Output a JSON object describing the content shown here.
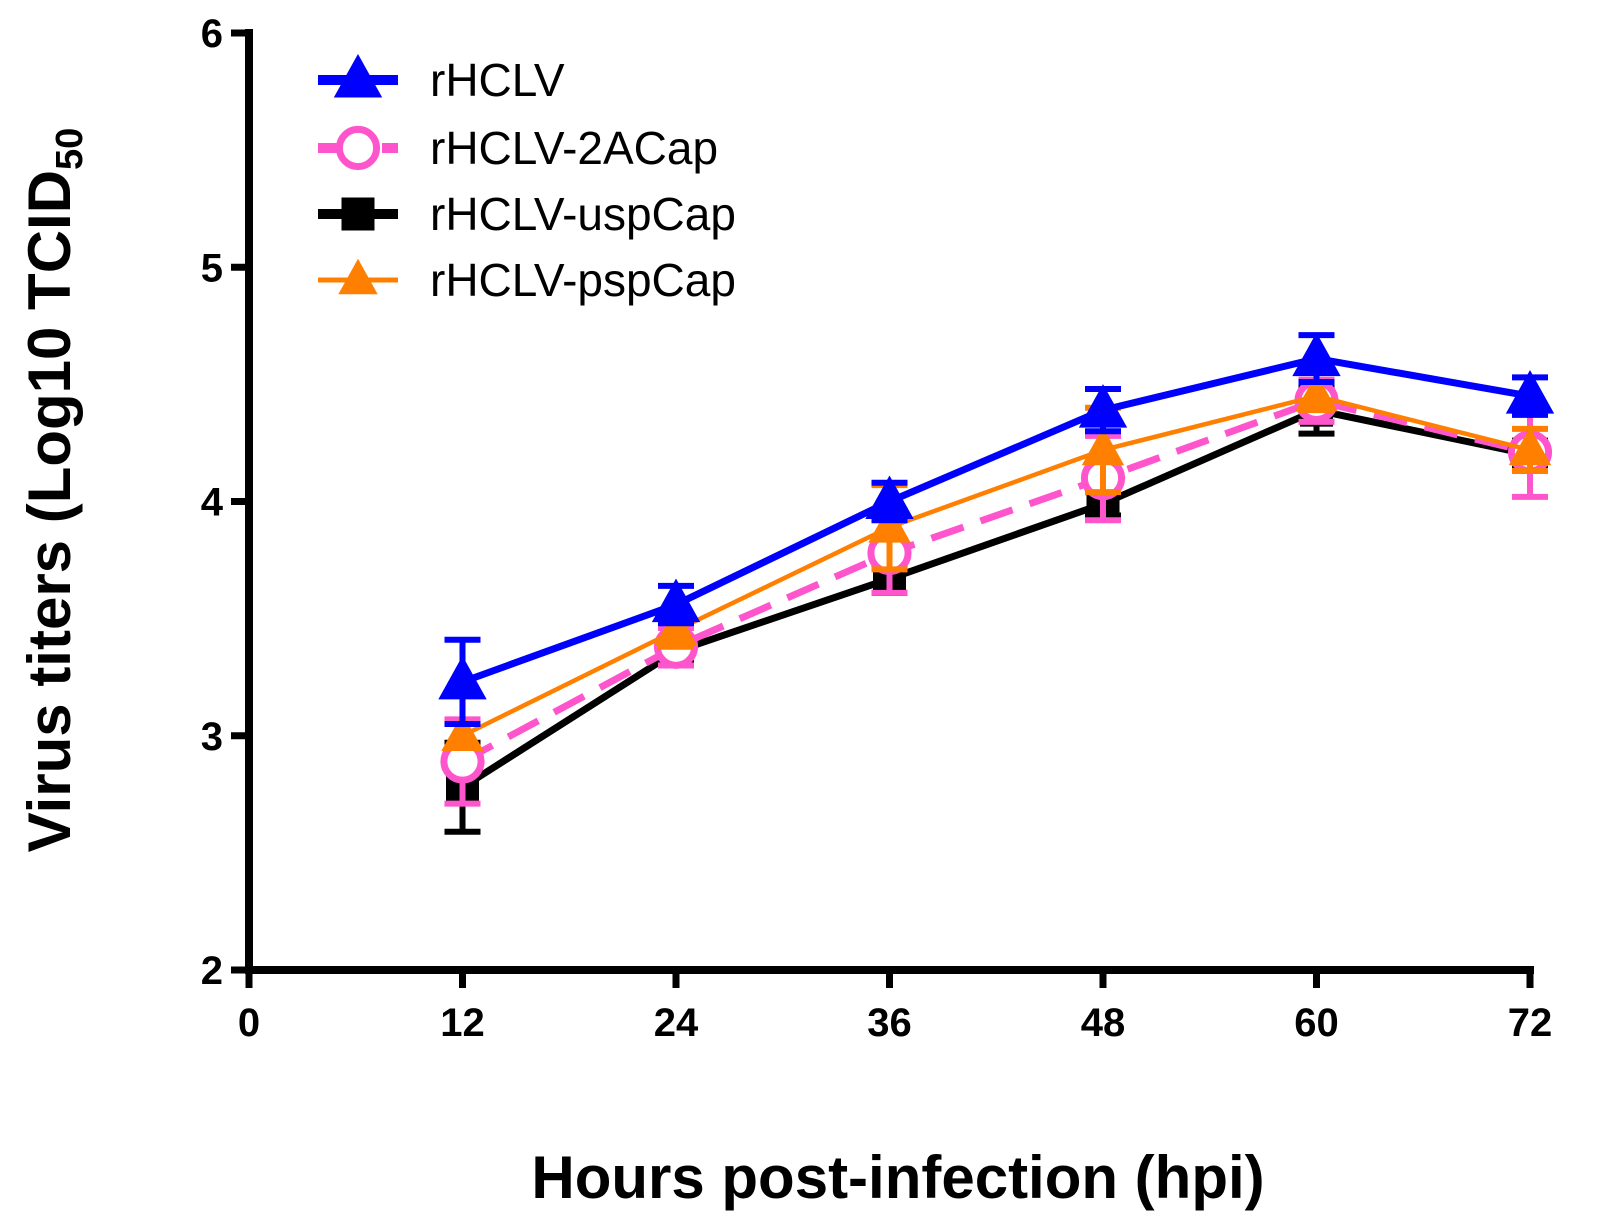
{
  "chart_data": {
    "type": "line",
    "title": "",
    "xlabel": "Hours post-infection (hpi)",
    "ylabel": "Virus titers (Log10 TCID",
    "ylabel_subscript": "50",
    "xlim": [
      0,
      72
    ],
    "ylim": [
      2,
      6
    ],
    "x_ticks": [
      0,
      12,
      24,
      36,
      48,
      60,
      72
    ],
    "y_ticks": [
      2,
      3,
      4,
      5,
      6
    ],
    "x_tick_labels": [
      "0",
      "12",
      "24",
      "36",
      "48",
      "60",
      "72"
    ],
    "y_tick_labels": [
      "2",
      "3",
      "4",
      "5",
      "6"
    ],
    "legend_position": "top-left",
    "x": [
      12,
      24,
      36,
      48,
      60,
      72
    ],
    "series": [
      {
        "name": "rHCLV",
        "color": "#0000ff",
        "marker": "triangle",
        "dash": "solid",
        "values": [
          3.23,
          3.56,
          4.0,
          4.39,
          4.61,
          4.45
        ],
        "errors": [
          0.18,
          0.08,
          0.08,
          0.09,
          0.1,
          0.08
        ]
      },
      {
        "name": "rHCLV-2ACap",
        "color": "#ff55cc",
        "marker": "circle",
        "dash": "dashed",
        "values": [
          2.89,
          3.38,
          3.78,
          4.1,
          4.43,
          4.21
        ],
        "errors": [
          0.18,
          0.08,
          0.17,
          0.18,
          0.09,
          0.19
        ]
      },
      {
        "name": "rHCLV-uspCap",
        "color": "#000000",
        "marker": "square",
        "dash": "solid",
        "values": [
          2.78,
          3.36,
          3.67,
          3.99,
          4.39,
          4.2
        ],
        "errors": [
          0.19,
          0.05,
          0.06,
          0.05,
          0.1,
          0.06
        ]
      },
      {
        "name": "rHCLV-pspCap",
        "color": "#ff8000",
        "marker": "triangle",
        "dash": "solid",
        "values": [
          3.0,
          3.45,
          3.89,
          4.22,
          4.45,
          4.22
        ],
        "errors": [
          0.05,
          0.07,
          0.18,
          0.18,
          0.06,
          0.09
        ]
      }
    ]
  }
}
